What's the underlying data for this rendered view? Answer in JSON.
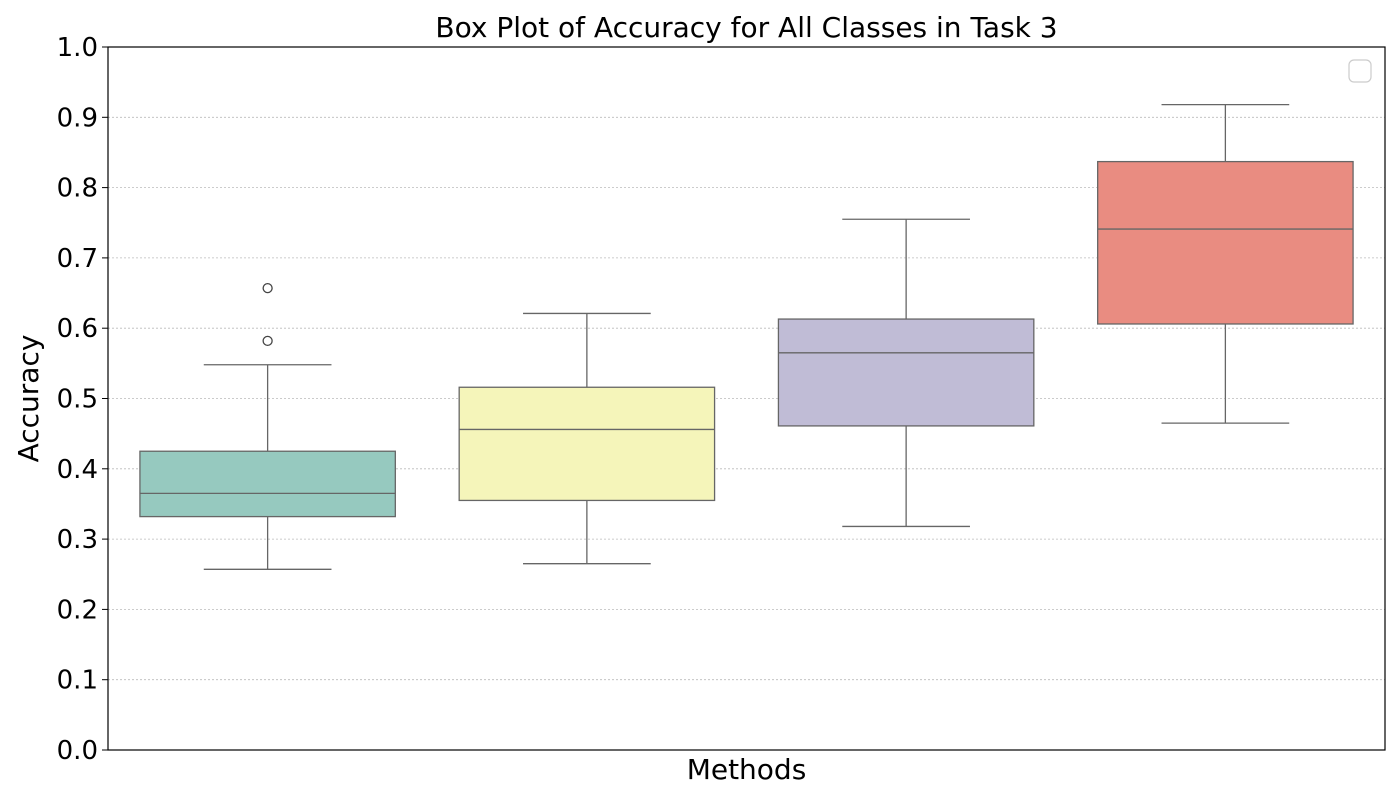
{
  "chart_data": {
    "type": "box",
    "title": "Box Plot of Accuracy for All Classes in Task 3",
    "xlabel": "Methods",
    "ylabel": "Accuracy",
    "ylim": [
      0.0,
      1.0
    ],
    "yticks": [
      "0.0",
      "0.1",
      "0.2",
      "0.3",
      "0.4",
      "0.5",
      "0.6",
      "0.7",
      "0.8",
      "0.9",
      "1.0"
    ],
    "grid": "horizontal dotted",
    "legend": "top-right (empty)",
    "boxes": [
      {
        "color": "#96C9BF",
        "whisker_low": 0.257,
        "q1": 0.332,
        "median": 0.365,
        "q3": 0.425,
        "whisker_high": 0.548,
        "outliers": [
          0.582,
          0.657
        ]
      },
      {
        "color": "#F5F5BA",
        "whisker_low": 0.265,
        "q1": 0.355,
        "median": 0.456,
        "q3": 0.516,
        "whisker_high": 0.621,
        "outliers": []
      },
      {
        "color": "#C0BCD6",
        "whisker_low": 0.318,
        "q1": 0.461,
        "median": 0.565,
        "q3": 0.613,
        "whisker_high": 0.755,
        "outliers": []
      },
      {
        "color": "#E98C81",
        "whisker_low": 0.465,
        "q1": 0.606,
        "median": 0.741,
        "q3": 0.837,
        "whisker_high": 0.918,
        "outliers": []
      }
    ]
  }
}
